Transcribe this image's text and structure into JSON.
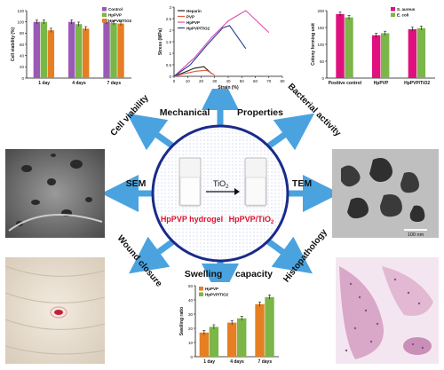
{
  "central": {
    "left_label": "HpPVP hydrogel",
    "right_label": "HpPVP/TiO",
    "right_label_sub": "2",
    "arrow_label": "TiO",
    "arrow_label_sub": "2"
  },
  "sections": {
    "mechanical": "Mechanical",
    "properties": "Properties",
    "cell_viability": "Cell viability",
    "bacterial_activity": "Bacterial activity",
    "sem": "SEM",
    "tem": "TEM",
    "wound_closure": "Wound closure",
    "swelling": "Swelling",
    "capacity": "capacity",
    "histopathology": "Histopathology"
  },
  "tem_scale_label": "100 nm",
  "colors": {
    "arrow": "#4aa3df",
    "circle_border": "#1a2a8a",
    "green": "#7ab648",
    "purple": "#9b59b6",
    "orange": "#e67e22",
    "magenta": "#e0117f",
    "red_text": "#e0112b"
  },
  "chart_data": [
    {
      "id": "cell-viability",
      "type": "bar",
      "categories": [
        "1 day",
        "4 days",
        "7 days"
      ],
      "series": [
        {
          "name": "Control",
          "color": "#9b59b6",
          "values": [
            100,
            100,
            100
          ]
        },
        {
          "name": "HpPVP",
          "color": "#7ab648",
          "values": [
            100,
            96,
            98
          ]
        },
        {
          "name": "HpPVP/TiO2",
          "color": "#e67e22",
          "values": [
            85,
            88,
            97
          ]
        }
      ],
      "ylabel": "Cell viability (%)",
      "ylim": [
        0,
        120
      ],
      "yticks": [
        0,
        20,
        40,
        60,
        80,
        100,
        120
      ],
      "legend": "top-right"
    },
    {
      "id": "mechanical",
      "type": "line",
      "series": [
        {
          "name": "Heparin",
          "color": "#222222",
          "points": [
            [
              0,
              0
            ],
            [
              8,
              0.18
            ],
            [
              15,
              0.35
            ],
            [
              22,
              0.42
            ],
            [
              28,
              0.1
            ]
          ]
        },
        {
          "name": "PVP",
          "color": "#e05a3a",
          "points": [
            [
              0,
              0
            ],
            [
              8,
              0.12
            ],
            [
              16,
              0.22
            ],
            [
              24,
              0.26
            ],
            [
              30,
              0.05
            ]
          ]
        },
        {
          "name": "HpPVP",
          "color": "#d94fb0",
          "points": [
            [
              0,
              0
            ],
            [
              15,
              0.8
            ],
            [
              28,
              1.7
            ],
            [
              40,
              2.4
            ],
            [
              53,
              2.85
            ],
            [
              70,
              1.9
            ]
          ]
        },
        {
          "name": "HpPVP/TiO2",
          "color": "#2a3a9a",
          "points": [
            [
              0,
              0
            ],
            [
              12,
              0.5
            ],
            [
              25,
              1.4
            ],
            [
              36,
              2.1
            ],
            [
              41,
              2.2
            ],
            [
              53,
              1.2
            ]
          ]
        }
      ],
      "xlabel": "Strain (%)",
      "ylabel": "Stress (MPa)",
      "xlim": [
        0,
        80
      ],
      "ylim": [
        0,
        3.0
      ],
      "xticks": [
        0,
        10,
        20,
        30,
        40,
        50,
        60,
        70,
        80
      ],
      "yticks": [
        0.0,
        0.5,
        1.0,
        1.5,
        2.0,
        2.5,
        3.0
      ],
      "legend": "top-left"
    },
    {
      "id": "bacterial",
      "type": "bar",
      "categories": [
        "Positive control",
        "HpPVP",
        "HpPVP/TiO2"
      ],
      "series": [
        {
          "name": "S. aureus",
          "color": "#e0117f",
          "values": [
            190,
            127,
            145
          ]
        },
        {
          "name": "E. coli",
          "color": "#7ab648",
          "values": [
            180,
            133,
            148
          ]
        }
      ],
      "ylabel": "Colony forming unit",
      "ylim": [
        0,
        200
      ],
      "yticks": [
        0,
        50,
        100,
        150,
        200
      ],
      "legend": "top-right"
    },
    {
      "id": "swelling",
      "type": "bar",
      "categories": [
        "1 day",
        "4 days",
        "7 days"
      ],
      "series": [
        {
          "name": "HpPVP",
          "color": "#e67e22",
          "values": [
            17,
            24,
            37
          ]
        },
        {
          "name": "HpPVP/TiO2",
          "color": "#7ab648",
          "values": [
            21,
            27,
            42
          ]
        }
      ],
      "ylabel": "Swelling ratio",
      "ylim": [
        0,
        50
      ],
      "yticks": [
        0,
        10,
        20,
        30,
        40,
        50
      ],
      "legend": "top-left"
    }
  ]
}
